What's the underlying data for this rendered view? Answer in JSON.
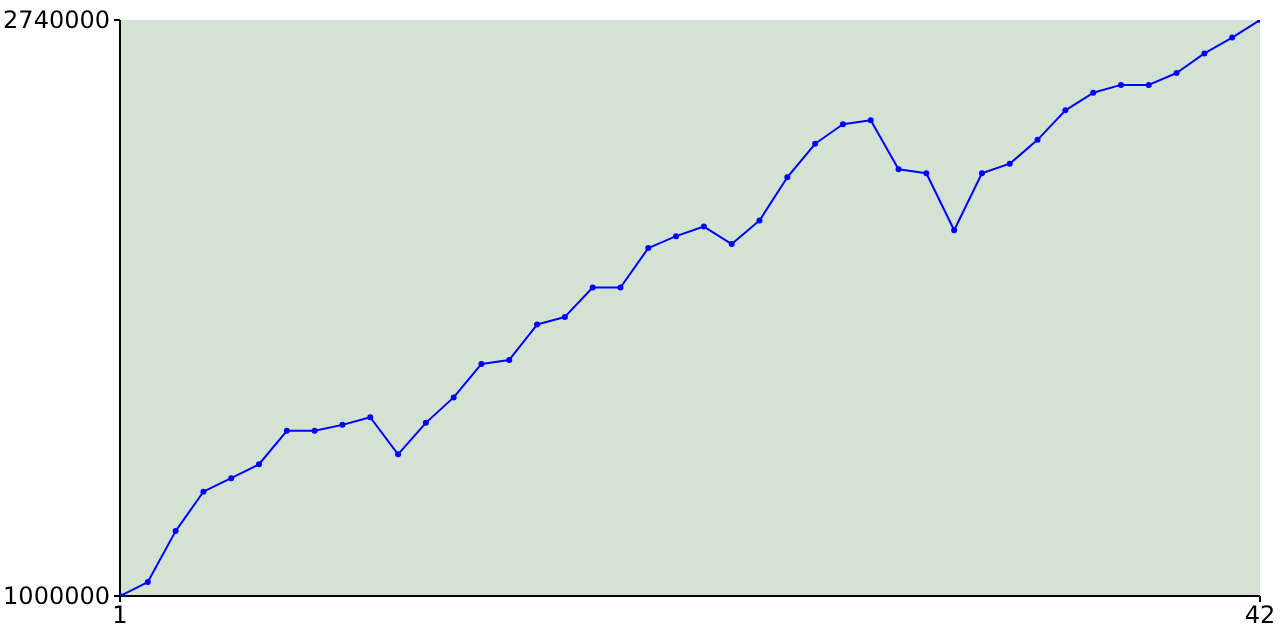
{
  "chart_data": {
    "type": "line",
    "x": [
      1,
      2,
      3,
      4,
      5,
      6,
      7,
      8,
      9,
      10,
      11,
      12,
      13,
      14,
      15,
      16,
      17,
      18,
      19,
      20,
      21,
      22,
      23,
      24,
      25,
      26,
      27,
      28,
      29,
      30,
      31,
      32,
      33,
      34,
      35,
      36,
      37,
      38,
      39,
      40,
      41,
      42
    ],
    "series": [
      {
        "color": "#0000ff",
        "values": [
          1000000,
          1042000,
          1196000,
          1315000,
          1356000,
          1398000,
          1499000,
          1499000,
          1517000,
          1540000,
          1428000,
          1523000,
          1600000,
          1701000,
          1713000,
          1820000,
          1843000,
          1932000,
          1932000,
          2051000,
          2087000,
          2116000,
          2063000,
          2134000,
          2265000,
          2366000,
          2425000,
          2437000,
          2289000,
          2277000,
          2105000,
          2277000,
          2306000,
          2378000,
          2467000,
          2520000,
          2544000,
          2544000,
          2580000,
          2639000,
          2687000,
          2740000
        ]
      }
    ],
    "xlim": [
      1,
      42
    ],
    "xticks": [
      1,
      42
    ],
    "ylim": [
      1000000,
      2740000
    ],
    "yticks": [
      1000000,
      2740000
    ],
    "grid": false,
    "legend": false,
    "marker": "circle",
    "line_style": "solid"
  }
}
